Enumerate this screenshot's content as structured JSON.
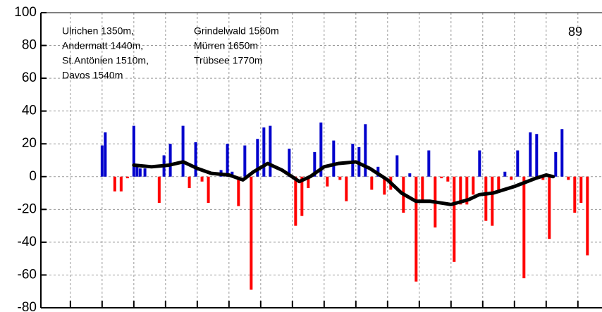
{
  "chart_data": {
    "type": "bar",
    "annotation_columns": [
      [
        "Ulrichen 1350m,",
        "Andermatt 1440m,",
        "St.Antönien 1510m,",
        "Davos 1540m"
      ],
      [
        "Grindelwald 1560m",
        "Mürren 1650m",
        "Trübsee 1770m"
      ]
    ],
    "label": "89",
    "x": [
      10,
      11,
      14,
      16,
      18,
      20,
      21,
      22,
      23.5,
      28,
      29.5,
      31.5,
      35.5,
      37.5,
      39.5,
      41.5,
      43.5,
      47.5,
      49.5,
      51,
      53,
      55,
      57,
      59,
      61,
      63,
      69,
      71,
      73,
      75,
      77,
      79,
      81,
      83,
      85,
      87,
      89,
      91,
      93,
      95,
      97,
      99,
      101,
      103,
      105,
      107,
      109,
      111,
      113,
      115,
      117,
      119,
      121,
      123,
      125,
      127,
      129,
      131,
      133,
      135,
      137,
      139,
      141,
      143,
      145,
      147,
      149,
      151,
      153,
      155,
      157,
      159,
      161,
      163
    ],
    "values": [
      19,
      27,
      -9,
      -9,
      -1,
      31,
      6,
      5,
      5,
      -16,
      13,
      20,
      31,
      -7,
      21,
      -3,
      -16,
      4,
      20,
      3,
      -18,
      19,
      -69,
      23,
      30,
      31,
      17,
      -30,
      -24,
      -7,
      15,
      33,
      -6,
      22,
      -2,
      -15,
      20,
      18,
      32,
      -8,
      6,
      -11,
      -8,
      13,
      -22,
      2,
      -64,
      -16,
      16,
      -31,
      -1,
      -3,
      -52,
      -17,
      -17,
      -11,
      16,
      -27,
      -30,
      -9,
      3,
      -2,
      16,
      -62,
      27,
      26,
      -2,
      -38,
      15,
      29,
      -2,
      -22,
      -16,
      -48
    ],
    "positive_color": "#0000cc",
    "negative_color": "#ff0000",
    "line": {
      "color": "#000000",
      "x": [
        20,
        25.6,
        31.1,
        35.6,
        40,
        44.4,
        50,
        54.4,
        57.8,
        62.2,
        66.7,
        72.2,
        75.6,
        80,
        84.4,
        90,
        94.4,
        100,
        104.4,
        108.9,
        113.3,
        120,
        125.6,
        128.9,
        133.3,
        140,
        146.7,
        150,
        152.2
      ],
      "values": [
        7,
        6,
        7,
        9,
        5,
        2,
        1,
        -2,
        3,
        8,
        4,
        -3,
        0,
        6,
        8,
        9,
        5,
        -2,
        -10,
        -15,
        -15,
        -17,
        -14,
        -11,
        -10,
        -6,
        -1,
        1,
        0
      ]
    },
    "xlim": [
      -9.3,
      167.6
    ],
    "xticks": [
      0,
      10,
      20,
      30,
      40,
      50,
      60,
      70,
      80,
      90,
      100,
      110,
      120,
      130,
      140,
      150,
      160
    ],
    "ylim": [
      -80,
      100
    ],
    "yticks": [
      -80,
      -60,
      -40,
      -20,
      0,
      20,
      40,
      60,
      80,
      100
    ],
    "grid": true
  }
}
